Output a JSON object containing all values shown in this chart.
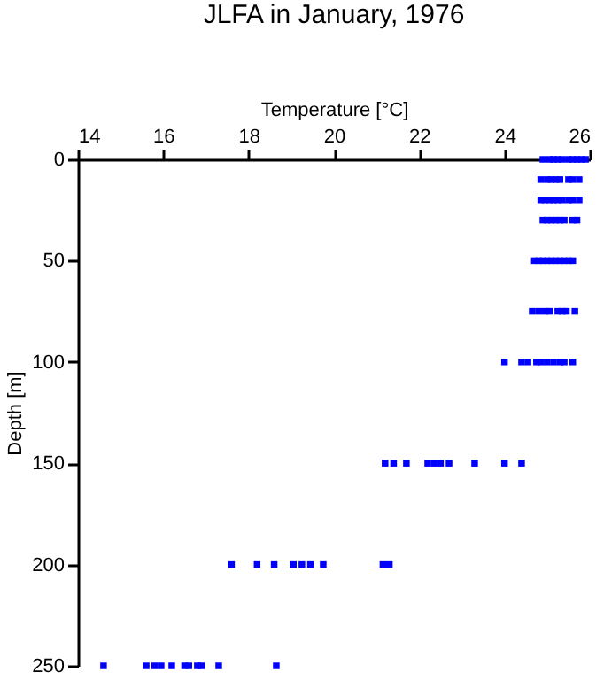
{
  "chart_data": {
    "type": "scatter",
    "title": "JLFA in January, 1976",
    "xlabel": "Temperature [°C]",
    "ylabel": "Depth [m]",
    "xlim": [
      14,
      26
    ],
    "xticks": [
      14,
      16,
      18,
      20,
      22,
      24,
      26
    ],
    "ylim": [
      250,
      0
    ],
    "yticks": [
      0,
      50,
      100,
      150,
      200,
      250
    ],
    "grid": false,
    "marker": "square",
    "series": [
      {
        "color": "#0000ff",
        "x": [
          24.9,
          25.05,
          25.15,
          25.25,
          25.35,
          25.5,
          25.6,
          25.7,
          25.8,
          25.9,
          24.85,
          25.0,
          25.1,
          25.2,
          25.3,
          25.5,
          25.6,
          25.75,
          24.85,
          24.95,
          25.05,
          25.15,
          25.25,
          25.35,
          25.5,
          25.6,
          25.75,
          24.9,
          25.0,
          25.1,
          25.2,
          25.3,
          25.4,
          25.6,
          25.7,
          24.7,
          24.8,
          24.9,
          25.0,
          25.1,
          25.2,
          25.3,
          25.4,
          25.5,
          25.6,
          24.65,
          24.8,
          24.95,
          25.05,
          25.25,
          25.35,
          25.45,
          25.65,
          24.0,
          24.4,
          24.55,
          24.75,
          24.85,
          25.0,
          25.15,
          25.3,
          25.4,
          25.6,
          21.2,
          21.4,
          21.7,
          22.2,
          22.35,
          22.5,
          22.7,
          23.3,
          24.0,
          24.4,
          17.6,
          18.2,
          18.6,
          19.05,
          19.25,
          19.45,
          19.75,
          21.15,
          21.3,
          14.6,
          15.6,
          15.8,
          15.95,
          16.2,
          16.5,
          16.6,
          16.8,
          16.9,
          17.3,
          18.65
        ],
        "values": [
          0,
          0,
          0,
          0,
          0,
          0,
          0,
          0,
          0,
          0,
          10,
          10,
          10,
          10,
          10,
          10,
          10,
          10,
          20,
          20,
          20,
          20,
          20,
          20,
          20,
          20,
          20,
          30,
          30,
          30,
          30,
          30,
          30,
          30,
          30,
          50,
          50,
          50,
          50,
          50,
          50,
          50,
          50,
          50,
          50,
          75,
          75,
          75,
          75,
          75,
          75,
          75,
          75,
          100,
          100,
          100,
          100,
          100,
          100,
          100,
          100,
          100,
          100,
          150,
          150,
          150,
          150,
          150,
          150,
          150,
          150,
          150,
          150,
          200,
          200,
          200,
          200,
          200,
          200,
          200,
          200,
          200,
          250,
          250,
          250,
          250,
          250,
          250,
          250,
          250,
          250,
          250,
          250
        ]
      }
    ]
  }
}
